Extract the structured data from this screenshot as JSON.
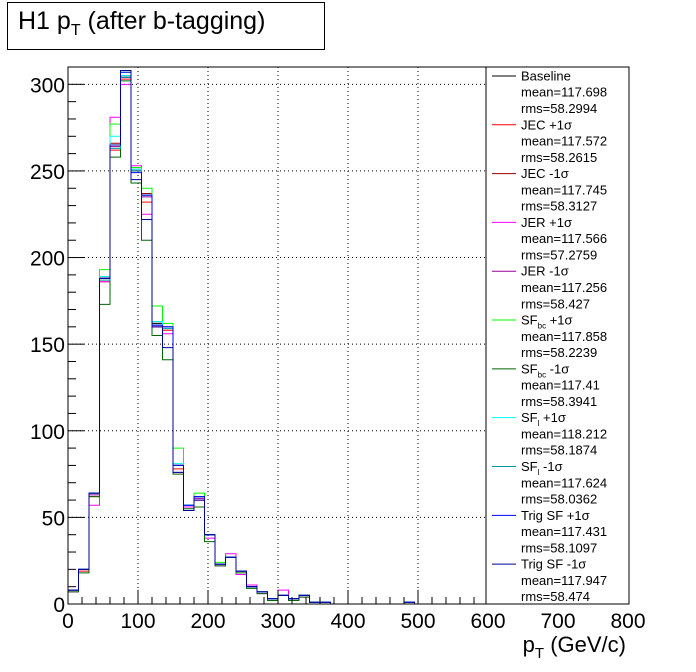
{
  "title": {
    "main": "H1 p",
    "sub": "T",
    "rest": " (after b-tagging)"
  },
  "x_axis": {
    "label_main": "p",
    "label_sub": "T",
    "label_rest": " (GeV/c)"
  },
  "chart_data": {
    "type": "histogram",
    "title": "H1 pT (after b-tagging)",
    "xlabel": "pT (GeV/c)",
    "ylabel": "",
    "xlim": [
      0,
      800
    ],
    "ylim": [
      0,
      310
    ],
    "grid": true,
    "legend_placement": "right",
    "x_ticks": [
      0,
      100,
      200,
      300,
      400,
      500,
      600,
      700,
      800
    ],
    "y_ticks": [
      0,
      50,
      100,
      150,
      200,
      250,
      300
    ],
    "bin_edges": [
      0,
      15,
      30,
      45,
      60,
      75,
      90,
      105,
      120,
      135,
      150,
      165,
      180,
      195,
      210,
      225,
      240,
      255,
      270,
      285,
      300,
      315,
      330,
      345,
      360,
      375,
      390,
      405,
      420,
      435,
      450,
      465,
      480,
      495,
      510,
      525,
      540,
      555,
      570,
      585,
      600
    ],
    "series": [
      {
        "name": "Baseline",
        "stats": [
          "mean=117.698",
          "rms=58.2994"
        ],
        "color": "#000000",
        "values": [
          8,
          20,
          64,
          188,
          265,
          305,
          250,
          236,
          162,
          160,
          80,
          57,
          62,
          40,
          23,
          27,
          19,
          10,
          7,
          3,
          5,
          3,
          5,
          1,
          1,
          0,
          0,
          0,
          0,
          0,
          0,
          0,
          1,
          0,
          0,
          0,
          0,
          0,
          0,
          0
        ]
      },
      {
        "name": "JEC +1σ",
        "stats": [
          "mean=117.572",
          "rms=58.2615"
        ],
        "color": "#ff0000",
        "values": [
          8,
          19,
          62,
          186,
          262,
          303,
          252,
          232,
          160,
          158,
          78,
          56,
          60,
          40,
          23,
          27,
          19,
          10,
          7,
          3,
          5,
          3,
          5,
          1,
          1,
          0,
          0,
          0,
          0,
          0,
          0,
          0,
          1,
          0,
          0,
          0,
          0,
          0,
          0,
          0
        ]
      },
      {
        "name": "JEC -1σ",
        "stats": [
          "mean=117.745",
          "rms=58.3127"
        ],
        "color": "#990000",
        "values": [
          8,
          20,
          64,
          189,
          266,
          304,
          251,
          237,
          163,
          160,
          80,
          57,
          62,
          40,
          23,
          27,
          19,
          10,
          7,
          3,
          5,
          3,
          5,
          1,
          1,
          0,
          0,
          0,
          0,
          0,
          0,
          0,
          1,
          0,
          0,
          0,
          0,
          0,
          0,
          0
        ]
      },
      {
        "name": "JER +1σ",
        "stats": [
          "mean=117.566",
          "rms=57.2759"
        ],
        "color": "#ff00ff",
        "values": [
          7,
          20,
          57,
          186,
          281,
          300,
          253,
          225,
          160,
          156,
          76,
          56,
          60,
          38,
          22,
          29,
          17,
          11,
          6,
          3,
          8,
          3,
          4,
          1,
          1,
          0,
          0,
          0,
          0,
          0,
          0,
          0,
          1,
          0,
          0,
          0,
          0,
          0,
          0,
          0
        ]
      },
      {
        "name": "JER -1σ",
        "stats": [
          "mean=117.256",
          "rms=58.427"
        ],
        "color": "#990099",
        "values": [
          8,
          20,
          63,
          188,
          264,
          304,
          250,
          235,
          161,
          160,
          80,
          57,
          61,
          40,
          23,
          27,
          19,
          10,
          7,
          3,
          5,
          3,
          5,
          1,
          1,
          0,
          0,
          0,
          0,
          0,
          0,
          0,
          1,
          0,
          0,
          0,
          0,
          0,
          0,
          0
        ]
      },
      {
        "name": "SF_bc +1σ",
        "stats": [
          "mean=117.858",
          "rms=58.2239"
        ],
        "color": "#00ff00",
        "values": [
          8,
          20,
          64,
          193,
          277,
          307,
          252,
          240,
          172,
          162,
          90,
          57,
          64,
          40,
          24,
          27,
          19,
          10,
          7,
          3,
          5,
          3,
          5,
          1,
          1,
          0,
          0,
          0,
          0,
          0,
          0,
          0,
          1,
          0,
          0,
          0,
          0,
          0,
          0,
          0
        ]
      },
      {
        "name": "SF_bc -1σ",
        "stats": [
          "mean=117.41",
          "rms=58.3941"
        ],
        "color": "#006600",
        "values": [
          7,
          18,
          62,
          173,
          258,
          302,
          243,
          210,
          155,
          141,
          75,
          55,
          56,
          36,
          22,
          27,
          18,
          9,
          6,
          2,
          5,
          2,
          4,
          1,
          1,
          0,
          0,
          0,
          0,
          0,
          0,
          0,
          1,
          0,
          0,
          0,
          0,
          0,
          0,
          0
        ]
      },
      {
        "name": "SF_l +1σ",
        "stats": [
          "mean=118.212",
          "rms=58.1874"
        ],
        "color": "#00ffff",
        "values": [
          8,
          20,
          64,
          189,
          270,
          305,
          251,
          236,
          163,
          160,
          81,
          57,
          62,
          40,
          23,
          27,
          19,
          10,
          7,
          3,
          5,
          3,
          5,
          1,
          1,
          0,
          0,
          0,
          0,
          0,
          0,
          0,
          1,
          0,
          0,
          0,
          0,
          0,
          0,
          0
        ]
      },
      {
        "name": "SF_l -1σ",
        "stats": [
          "mean=117.624",
          "rms=58.0362"
        ],
        "color": "#009999",
        "values": [
          8,
          20,
          64,
          187,
          263,
          304,
          250,
          236,
          161,
          159,
          80,
          57,
          62,
          40,
          23,
          27,
          19,
          10,
          7,
          3,
          5,
          3,
          5,
          1,
          1,
          0,
          0,
          0,
          0,
          0,
          0,
          0,
          1,
          0,
          0,
          0,
          0,
          0,
          0,
          0
        ]
      },
      {
        "name": "Trig SF +1σ",
        "stats": [
          "mean=117.431",
          "rms=58.1097"
        ],
        "color": "#0000ff",
        "values": [
          8,
          20,
          64,
          188,
          265,
          307,
          249,
          236,
          161,
          160,
          80,
          57,
          62,
          40,
          23,
          27,
          19,
          10,
          7,
          3,
          5,
          3,
          5,
          1,
          1,
          0,
          0,
          0,
          0,
          0,
          0,
          0,
          1,
          0,
          0,
          0,
          0,
          0,
          0,
          0
        ]
      },
      {
        "name": "Trig SF -1σ",
        "stats": [
          "mean=117.947",
          "rms=58.474"
        ],
        "color": "#000099",
        "values": [
          8,
          20,
          64,
          188,
          265,
          308,
          245,
          222,
          160,
          148,
          76,
          54,
          60,
          40,
          23,
          27,
          19,
          10,
          7,
          3,
          5,
          3,
          5,
          1,
          1,
          0,
          0,
          0,
          0,
          0,
          0,
          0,
          1,
          0,
          0,
          0,
          0,
          0,
          0,
          0
        ]
      }
    ]
  }
}
